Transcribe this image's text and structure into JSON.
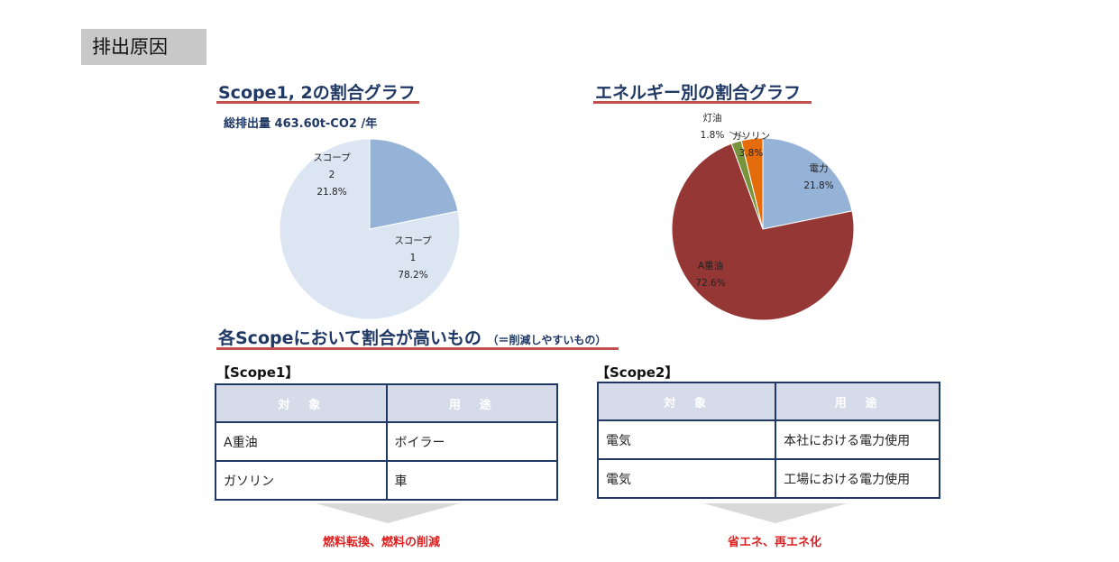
{
  "page": {
    "title": "排出原因"
  },
  "scope_chart": {
    "title": "Scope1, 2の割合グラフ",
    "total": "総排出量 463.60t-CO2 /年"
  },
  "energy_chart": {
    "title": "エネルギー別の割合グラフ"
  },
  "high_section": {
    "title": "各Scopeにおいて割合が高いもの",
    "note": "（＝削減しやすいもの）"
  },
  "scope1_table": {
    "label": "【Scope1】",
    "headers": [
      "対　象",
      "用　途"
    ],
    "rows": [
      [
        "A重油",
        "ボイラー"
      ],
      [
        "ガソリン",
        "車"
      ]
    ],
    "result": "燃料転換、燃料の削減"
  },
  "scope2_table": {
    "label": "【Scope2】",
    "headers": [
      "対　象",
      "用　途"
    ],
    "rows": [
      [
        "電気",
        "本社における電力使用"
      ],
      [
        "電気",
        "工場における電力使用"
      ]
    ],
    "result": "省エネ、再エネ化"
  },
  "chart_data": [
    {
      "type": "pie",
      "title": "Scope1, 2の割合グラフ",
      "categories": [
        "スコープ2",
        "スコープ1"
      ],
      "label_lines": [
        [
          "スコープ",
          "2",
          "21.8%"
        ],
        [
          "スコープ",
          "1",
          "78.2%"
        ]
      ],
      "values": [
        21.8,
        78.2
      ],
      "colors": [
        "#95b3d7",
        "#dce6f2"
      ]
    },
    {
      "type": "pie",
      "title": "エネルギー別の割合グラフ",
      "categories": [
        "電力",
        "A重油",
        "灯油",
        "ガソリン"
      ],
      "label_lines": [
        [
          "電力",
          "21.8%"
        ],
        [
          "A重油",
          "72.6%"
        ],
        [
          "灯油",
          "1.8%"
        ],
        [
          "ガソリン",
          "3.8%"
        ]
      ],
      "values": [
        21.8,
        72.6,
        1.8,
        3.8
      ],
      "colors": [
        "#95b3d7",
        "#953735",
        "#77933c",
        "#e46c0a"
      ]
    }
  ]
}
